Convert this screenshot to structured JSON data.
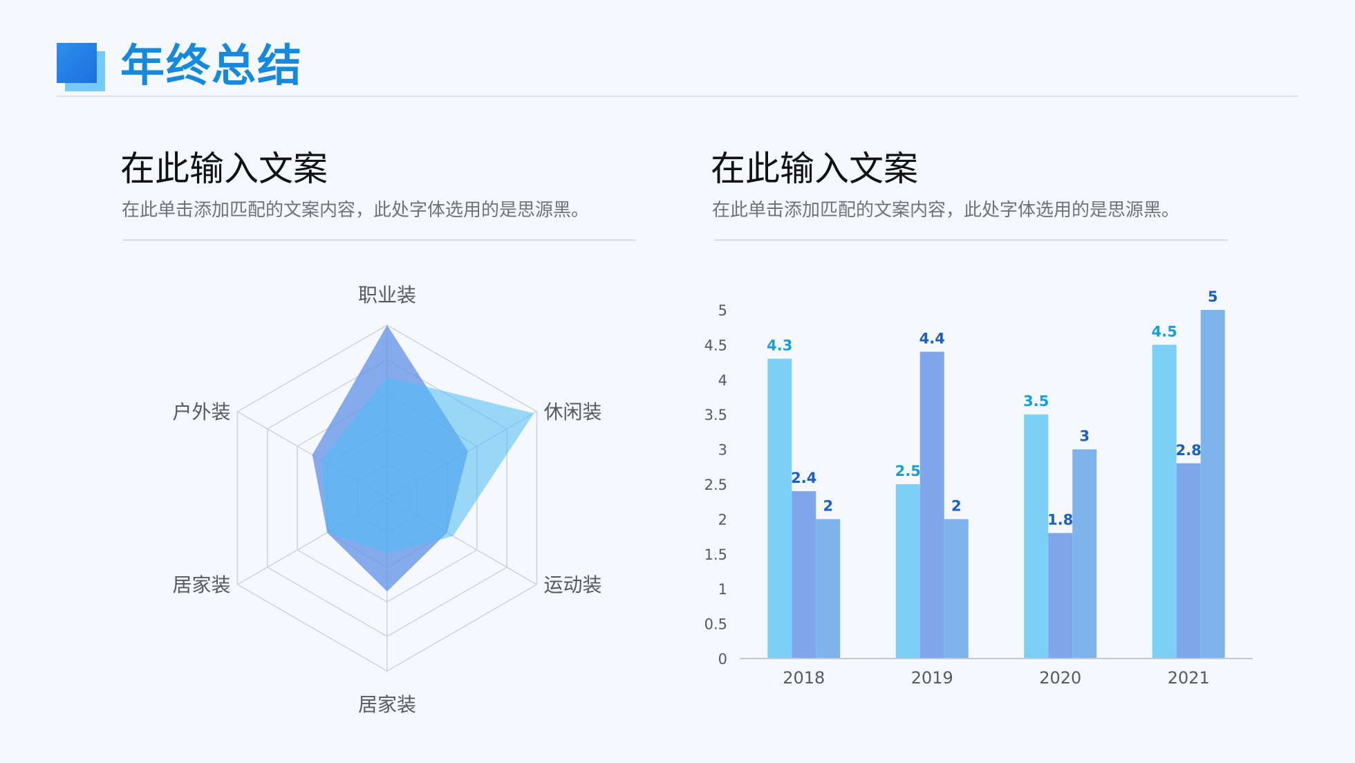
{
  "header": {
    "title": "年终总结"
  },
  "left": {
    "title": "在此输入文案",
    "description": "在此单击添加匹配的文案内容，此处字体选用的是思源黑。"
  },
  "right": {
    "title": "在此输入文案",
    "description": "在此单击添加匹配的文案内容，此处字体选用的是思源黑。"
  },
  "colors": {
    "accent": "#1489de",
    "bar_a": "#7ccff5",
    "bar_b": "#7fa6ea",
    "bar_c": "#7eb3ec",
    "label_a": "#17a0d6",
    "label_b": "#1a5fc4",
    "radar_a": "#5b8ee8",
    "radar_b": "#4dbcf5"
  },
  "chart_data": [
    {
      "type": "radar",
      "categories": [
        "职业装",
        "休闲装",
        "运动装",
        "居家装",
        "居家装",
        "户外装"
      ],
      "max": 5,
      "rings": 5,
      "series": [
        {
          "values": [
            5.0,
            2.7,
            2.0,
            2.7,
            2.0,
            2.5
          ]
        },
        {
          "values": [
            3.5,
            4.9,
            2.2,
            1.6,
            2.0,
            2.2
          ]
        }
      ]
    },
    {
      "type": "bar",
      "categories": [
        "2018",
        "2019",
        "2020",
        "2021"
      ],
      "ylim": [
        0,
        5
      ],
      "yticks": [
        "0",
        "0.5",
        "1",
        "1.5",
        "2",
        "2.5",
        "3",
        "3.5",
        "4",
        "4.5",
        "5"
      ],
      "series": [
        {
          "values": [
            4.3,
            2.5,
            3.5,
            4.5
          ],
          "labels": [
            "4.3",
            "2.5",
            "3.5",
            "4.5"
          ]
        },
        {
          "values": [
            2.4,
            4.4,
            1.8,
            2.8
          ],
          "labels": [
            "2.4",
            "4.4",
            "1.8",
            "2.8"
          ]
        },
        {
          "values": [
            2,
            2,
            3,
            5
          ],
          "labels": [
            "2",
            "2",
            "3",
            "5"
          ]
        }
      ]
    }
  ]
}
